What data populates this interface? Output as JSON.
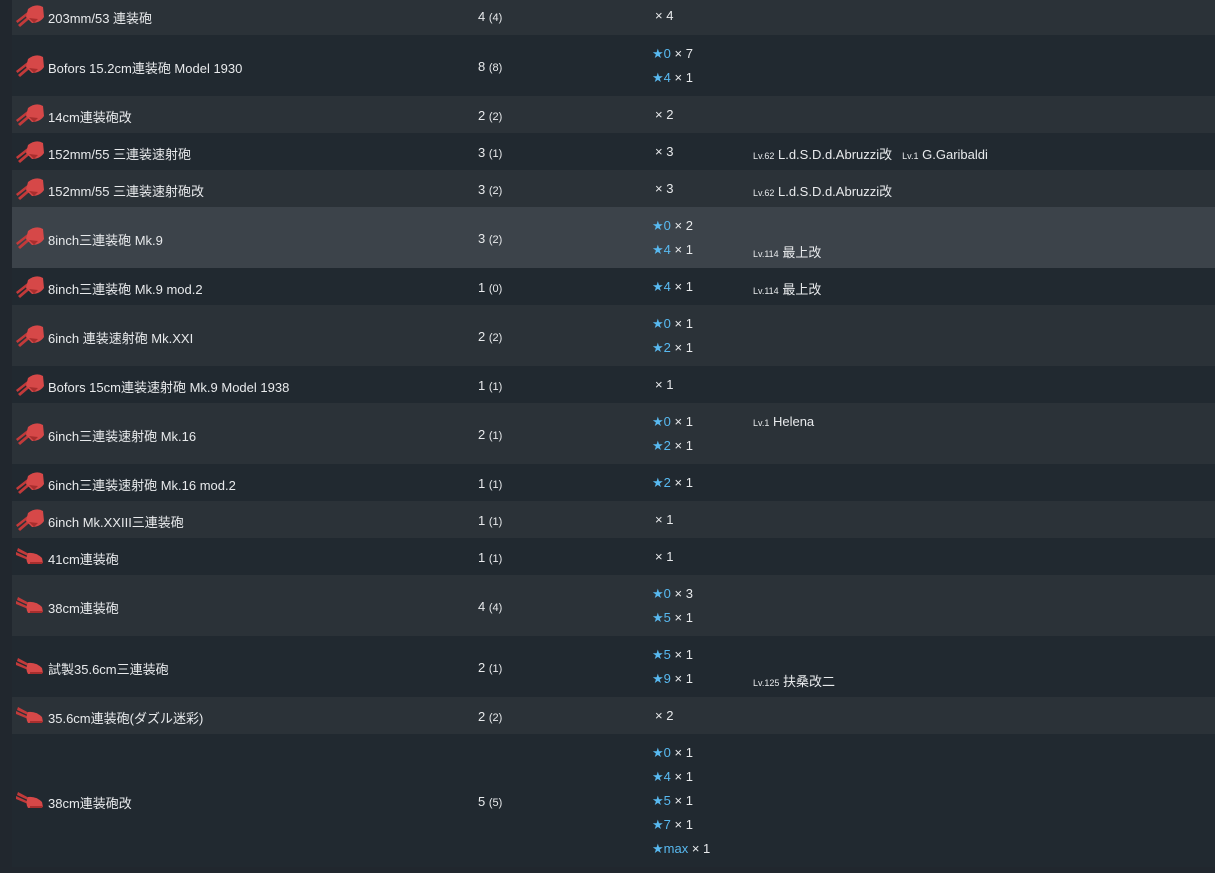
{
  "rows": [
    {
      "name": "203mm/53 連装砲",
      "count": "4",
      "sub": "(4)",
      "icon": "twin-gun-mount-icon",
      "h": 38,
      "bg": "alt",
      "levels": [
        {
          "star": "",
          "times": "× 4"
        }
      ],
      "ships": []
    },
    {
      "name": "Bofors 15.2cm連装砲 Model 1930",
      "count": "8",
      "sub": "(8)",
      "icon": "twin-gun-mount-icon",
      "h": 61,
      "bg": "norm",
      "levels": [
        {
          "star": "★0",
          "times": "× 7"
        },
        {
          "star": "★4",
          "times": "× 1"
        }
      ],
      "ships": []
    },
    {
      "name": "14cm連装砲改",
      "count": "2",
      "sub": "(2)",
      "icon": "twin-gun-mount-icon",
      "h": 37,
      "bg": "alt",
      "levels": [
        {
          "star": "",
          "times": "× 2"
        }
      ],
      "ships": []
    },
    {
      "name": "152mm/55 三連装速射砲",
      "count": "3",
      "sub": "(1)",
      "icon": "twin-gun-mount-icon",
      "h": 37,
      "bg": "norm",
      "levels": [
        {
          "star": "",
          "times": "× 3"
        }
      ],
      "ships": [
        {
          "lv": "Lv.62",
          "name": "L.d.S.D.d.Abruzzi改"
        },
        {
          "lv": "Lv.1",
          "name": "G.Garibaldi"
        }
      ]
    },
    {
      "name": "152mm/55 三連装速射砲改",
      "count": "3",
      "sub": "(2)",
      "icon": "twin-gun-mount-icon",
      "h": 37,
      "bg": "alt",
      "levels": [
        {
          "star": "",
          "times": "× 3"
        }
      ],
      "ships": [
        {
          "lv": "Lv.62",
          "name": "L.d.S.D.d.Abruzzi改"
        }
      ]
    },
    {
      "name": "8inch三連装砲 Mk.9",
      "count": "3",
      "sub": "(2)",
      "icon": "twin-gun-mount-icon",
      "h": 61,
      "bg": "hl",
      "levels": [
        {
          "star": "★0",
          "times": "× 2"
        },
        {
          "star": "★4",
          "times": "× 1"
        }
      ],
      "ships": [
        {
          "lv": "Lv.114",
          "name": "最上改"
        }
      ],
      "shipsLine": 1
    },
    {
      "name": "8inch三連装砲 Mk.9 mod.2",
      "count": "1",
      "sub": "(0)",
      "icon": "twin-gun-mount-icon",
      "h": 37,
      "bg": "norm",
      "levels": [
        {
          "star": "★4",
          "times": "× 1"
        }
      ],
      "ships": [
        {
          "lv": "Lv.114",
          "name": "最上改"
        }
      ]
    },
    {
      "name": "6inch 連装速射砲 Mk.XXI",
      "count": "2",
      "sub": "(2)",
      "icon": "twin-gun-mount-icon",
      "h": 61,
      "bg": "alt",
      "levels": [
        {
          "star": "★0",
          "times": "× 1"
        },
        {
          "star": "★2",
          "times": "× 1"
        }
      ],
      "ships": []
    },
    {
      "name": "Bofors 15cm連装速射砲 Mk.9 Model 1938",
      "count": "1",
      "sub": "(1)",
      "icon": "twin-gun-mount-icon",
      "h": 37,
      "bg": "norm",
      "levels": [
        {
          "star": "",
          "times": "× 1"
        }
      ],
      "ships": []
    },
    {
      "name": "6inch三連装速射砲 Mk.16",
      "count": "2",
      "sub": "(1)",
      "icon": "twin-gun-mount-icon",
      "h": 61,
      "bg": "alt",
      "levels": [
        {
          "star": "★0",
          "times": "× 1"
        },
        {
          "star": "★2",
          "times": "× 1"
        }
      ],
      "ships": [
        {
          "lv": "Lv.1",
          "name": "Helena"
        }
      ],
      "shipsLine": 0
    },
    {
      "name": "6inch三連装速射砲 Mk.16 mod.2",
      "count": "1",
      "sub": "(1)",
      "icon": "twin-gun-mount-icon",
      "h": 37,
      "bg": "norm",
      "levels": [
        {
          "star": "★2",
          "times": "× 1"
        }
      ],
      "ships": []
    },
    {
      "name": "6inch Mk.XXIII三連装砲",
      "count": "1",
      "sub": "(1)",
      "icon": "twin-gun-mount-icon",
      "h": 37,
      "bg": "alt",
      "levels": [
        {
          "star": "",
          "times": "× 1"
        }
      ],
      "ships": []
    },
    {
      "name": "41cm連装砲",
      "count": "1",
      "sub": "(1)",
      "icon": "large-caliber-gun-icon",
      "h": 37,
      "bg": "norm",
      "levels": [
        {
          "star": "",
          "times": "× 1"
        }
      ],
      "ships": []
    },
    {
      "name": "38cm連装砲",
      "count": "4",
      "sub": "(4)",
      "icon": "large-caliber-gun-icon",
      "h": 61,
      "bg": "alt",
      "levels": [
        {
          "star": "★0",
          "times": "× 3"
        },
        {
          "star": "★5",
          "times": "× 1"
        }
      ],
      "ships": []
    },
    {
      "name": "試製35.6cm三連装砲",
      "count": "2",
      "sub": "(1)",
      "icon": "large-caliber-gun-icon",
      "h": 61,
      "bg": "norm",
      "levels": [
        {
          "star": "★5",
          "times": "× 1"
        },
        {
          "star": "★9",
          "times": "× 1"
        }
      ],
      "ships": [
        {
          "lv": "Lv.125",
          "name": "扶桑改二"
        }
      ],
      "shipsLine": 1
    },
    {
      "name": "35.6cm連装砲(ダズル迷彩)",
      "count": "2",
      "sub": "(2)",
      "icon": "large-caliber-gun-icon",
      "h": 37,
      "bg": "alt",
      "levels": [
        {
          "star": "",
          "times": "× 2"
        }
      ],
      "ships": []
    },
    {
      "name": "38cm連装砲改",
      "count": "5",
      "sub": "(5)",
      "icon": "large-caliber-gun-icon",
      "h": 133,
      "bg": "norm",
      "levels": [
        {
          "star": "★0",
          "times": "× 1"
        },
        {
          "star": "★4",
          "times": "× 1"
        },
        {
          "star": "★5",
          "times": "× 1"
        },
        {
          "star": "★7",
          "times": "× 1"
        },
        {
          "star": "★max",
          "times": "× 1"
        }
      ],
      "ships": []
    }
  ]
}
